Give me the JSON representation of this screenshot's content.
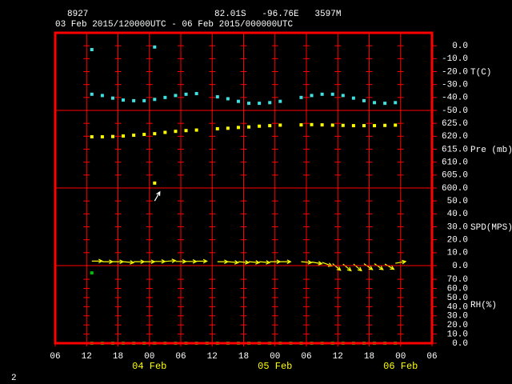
{
  "header": {
    "station": "8927",
    "location": "82.01S   -96.76E   3597M",
    "period": "03 Feb 2015/120000UTC - 06 Feb 2015/000000UTC",
    "page": "2"
  },
  "chart_data": {
    "type": "meteogram",
    "frame_color": "#ff0000",
    "grid": true,
    "x": [
      "2015-02-03T13:00",
      "2015-02-03T15:00",
      "2015-02-03T17:00",
      "2015-02-03T19:00",
      "2015-02-03T21:00",
      "2015-02-03T23:00",
      "2015-02-04T01:00",
      "2015-02-04T03:00",
      "2015-02-04T05:00",
      "2015-02-04T07:00",
      "2015-02-04T09:00",
      "2015-02-04T11:00",
      "2015-02-04T13:00",
      "2015-02-04T15:00",
      "2015-02-04T17:00",
      "2015-02-04T19:00",
      "2015-02-04T21:00",
      "2015-02-04T23:00",
      "2015-02-05T01:00",
      "2015-02-05T03:00",
      "2015-02-05T05:00",
      "2015-02-05T07:00",
      "2015-02-05T09:00",
      "2015-02-05T11:00",
      "2015-02-05T13:00",
      "2015-02-05T15:00",
      "2015-02-05T17:00",
      "2015-02-05T19:00",
      "2015-02-05T21:00",
      "2015-02-05T23:00"
    ],
    "xlim": [
      "2015-02-03T06:00",
      "2015-02-06T06:00"
    ],
    "xticks": [
      {
        "value": "2015-02-03T06:00",
        "label": "06"
      },
      {
        "value": "2015-02-03T12:00",
        "label": "12"
      },
      {
        "value": "2015-02-03T18:00",
        "label": "18"
      },
      {
        "value": "2015-02-04T00:00",
        "label": "00"
      },
      {
        "value": "2015-02-04T06:00",
        "label": "06"
      },
      {
        "value": "2015-02-04T12:00",
        "label": "12"
      },
      {
        "value": "2015-02-04T18:00",
        "label": "18"
      },
      {
        "value": "2015-02-05T00:00",
        "label": "00"
      },
      {
        "value": "2015-02-05T06:00",
        "label": "06"
      },
      {
        "value": "2015-02-05T12:00",
        "label": "12"
      },
      {
        "value": "2015-02-05T18:00",
        "label": "18"
      },
      {
        "value": "2015-02-06T00:00",
        "label": "00"
      },
      {
        "value": "2015-02-06T06:00",
        "label": "06"
      }
    ],
    "date_labels": [
      {
        "value": "2015-02-04T00:00",
        "label": "04 Feb"
      },
      {
        "value": "2015-02-05T00:00",
        "label": "05 Feb"
      },
      {
        "value": "2015-02-06T00:00",
        "label": "06 Feb"
      }
    ],
    "panels": [
      {
        "label": "T(C)",
        "type": "scatter",
        "ylim": [
          -50,
          10
        ],
        "yticks": [
          {
            "value": 0,
            "label": "0.0"
          },
          {
            "value": -10,
            "label": "-10.0"
          },
          {
            "value": -20,
            "label": "-20.0"
          },
          {
            "value": -30,
            "label": "-30.0"
          },
          {
            "value": -40,
            "label": "-40.0"
          },
          {
            "value": -50,
            "label": "-50.0"
          }
        ],
        "series": [
          {
            "color": "#40e0e0",
            "values": [
              -37.5,
              -38.5,
              -40.5,
              -42,
              -42.5,
              -42.5,
              -41.5,
              -40,
              -38.5,
              -37.5,
              -37,
              null,
              -39.5,
              -41,
              -43,
              -44.5,
              -44.5,
              -44,
              -43,
              null,
              -40,
              -38.5,
              -37.5,
              -37.5,
              -38.5,
              -40.5,
              -42.5,
              -44,
              -44.5,
              -44
            ]
          },
          {
            "color": "#40e0e0",
            "values": [
              -3,
              null,
              null,
              null,
              null,
              null,
              -1,
              null,
              null,
              null,
              null,
              null,
              null,
              null,
              null,
              null,
              null,
              null,
              null,
              null,
              null,
              null,
              null,
              null,
              null,
              null,
              null,
              null,
              null,
              null
            ]
          }
        ]
      },
      {
        "label": "Pre (mb)",
        "type": "scatter",
        "ylim": [
          600,
          630
        ],
        "yticks": [
          {
            "value": 625,
            "label": "625.0"
          },
          {
            "value": 620,
            "label": "620.0"
          },
          {
            "value": 615,
            "label": "615.0"
          },
          {
            "value": 610,
            "label": "610.0"
          },
          {
            "value": 605,
            "label": "605.0"
          },
          {
            "value": 600,
            "label": "600.0"
          }
        ],
        "series": [
          {
            "color": "#ffff00",
            "values": [
              619.8,
              619.8,
              619.9,
              620.1,
              620.4,
              620.7,
              621,
              621.5,
              621.9,
              622.2,
              622.4,
              null,
              622.9,
              623.1,
              623.4,
              623.6,
              623.9,
              624.1,
              624.3,
              null,
              624.4,
              624.5,
              624.4,
              624.3,
              624.2,
              624.1,
              624.1,
              624.1,
              624.2,
              624.3
            ]
          },
          {
            "color": "#ffff00",
            "values": [
              null,
              null,
              null,
              null,
              null,
              null,
              601.9,
              null,
              null,
              null,
              null,
              null,
              null,
              null,
              null,
              null,
              null,
              null,
              null,
              null,
              null,
              null,
              null,
              null,
              null,
              null,
              null,
              null,
              null,
              null
            ]
          }
        ]
      },
      {
        "label": "SPD(MPS)",
        "type": "wind",
        "ylim": [
          0,
          60
        ],
        "yticks": [
          {
            "value": 50,
            "label": "50.0"
          },
          {
            "value": 40,
            "label": "40.0"
          },
          {
            "value": 30,
            "label": "30.0"
          },
          {
            "value": 20,
            "label": "20.0"
          },
          {
            "value": 10,
            "label": "10.0"
          },
          {
            "value": 0,
            "label": "0.0"
          }
        ],
        "series": [
          {
            "color": "#ffff00",
            "values": [
              3.5,
              3,
              3,
              3,
              3,
              3,
              3.2,
              3.2,
              3.2,
              3.2,
              3.4,
              null,
              3,
              3,
              3,
              3,
              3,
              3,
              3,
              null,
              3,
              2.8,
              2.5,
              1.5,
              1.2,
              1.2,
              1.5,
              1.5,
              1.2,
              1.8
            ],
            "direction": [
              90,
              90,
              90,
              95,
              90,
              90,
              90,
              85,
              90,
              90,
              90,
              null,
              90,
              95,
              95,
              95,
              95,
              90,
              90,
              null,
              95,
              100,
              110,
              130,
              130,
              130,
              125,
              125,
              120,
              80
            ]
          },
          {
            "color": "#ffffff",
            "values": [
              null,
              null,
              null,
              null,
              null,
              null,
              50,
              null,
              null,
              null,
              null,
              null,
              null,
              null,
              null,
              null,
              null,
              null,
              null,
              null,
              null,
              null,
              null,
              null,
              null,
              null,
              null,
              null,
              null,
              null
            ],
            "direction": [
              null,
              null,
              null,
              null,
              null,
              null,
              30,
              null,
              null,
              null,
              null,
              null,
              null,
              null,
              null,
              null,
              null,
              null,
              null,
              null,
              null,
              null,
              null,
              null,
              null,
              null,
              null,
              null,
              null,
              null
            ]
          }
        ]
      },
      {
        "label": "RH(%)",
        "type": "scatter",
        "ylim": [
          0,
          85
        ],
        "yticks": [
          {
            "value": 70,
            "label": "70.0"
          },
          {
            "value": 60,
            "label": "60.0"
          },
          {
            "value": 50,
            "label": "50.0"
          },
          {
            "value": 40,
            "label": "40.0"
          },
          {
            "value": 30,
            "label": "30.0"
          },
          {
            "value": 20,
            "label": "20.0"
          },
          {
            "value": 10,
            "label": "10.0"
          },
          {
            "value": 0,
            "label": "0.0"
          }
        ],
        "series": [
          {
            "color": "#00c000",
            "values": [
              0,
              0,
              0,
              0,
              0,
              0,
              0,
              0,
              0,
              0,
              0,
              0,
              0,
              0,
              0,
              0,
              0,
              0,
              0,
              0,
              0,
              0,
              0,
              0,
              0,
              0,
              0,
              0,
              0,
              0
            ]
          },
          {
            "color": "#00c000",
            "values": [
              77,
              null,
              null,
              null,
              null,
              null,
              null,
              null,
              null,
              null,
              null,
              null,
              null,
              null,
              null,
              null,
              null,
              null,
              null,
              null,
              null,
              null,
              null,
              null,
              null,
              null,
              null,
              null,
              null,
              null
            ]
          }
        ]
      }
    ]
  }
}
